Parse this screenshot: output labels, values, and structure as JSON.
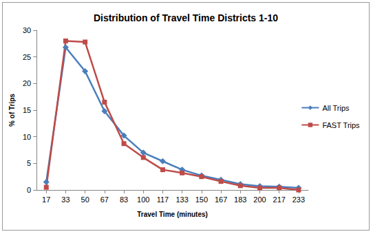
{
  "chart_data": {
    "type": "line",
    "title": "Distribution of Travel Time Districts 1-10",
    "x_label": "Travel Time (minutes)",
    "y_label": "% of Trips",
    "categories": [
      "17",
      "33",
      "50",
      "67",
      "83",
      "100",
      "117",
      "133",
      "150",
      "167",
      "183",
      "200",
      "217",
      "233"
    ],
    "series": [
      {
        "name": "All Trips",
        "color": "#4a7ebb",
        "marker": "diamond",
        "values": [
          1.5,
          26.8,
          22.3,
          14.8,
          10.2,
          7.0,
          5.4,
          3.8,
          2.7,
          1.9,
          1.1,
          0.7,
          0.6,
          0.4
        ]
      },
      {
        "name": "FAST Trips",
        "color": "#be4b48",
        "marker": "square",
        "values": [
          0.5,
          28.0,
          27.8,
          16.5,
          8.7,
          6.1,
          3.8,
          3.2,
          2.5,
          1.6,
          0.8,
          0.4,
          0.4,
          0.0
        ]
      }
    ],
    "ylim": [
      0,
      30
    ],
    "yticks": [
      0,
      5,
      10,
      15,
      20,
      25,
      30
    ],
    "grid": false,
    "legend": "right"
  }
}
